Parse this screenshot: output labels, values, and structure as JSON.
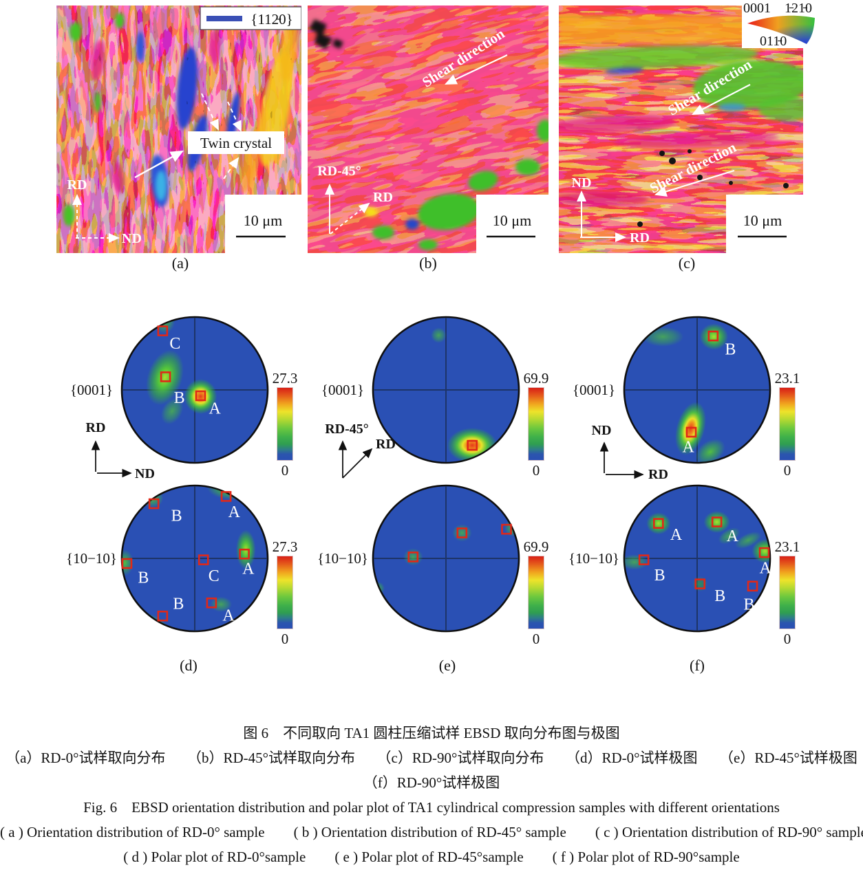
{
  "figure_tags": {
    "a": "(a)",
    "b": "(b)",
    "c": "(c)",
    "d": "(d)",
    "e": "(e)",
    "f": "(f)"
  },
  "panels": {
    "a": {
      "legend_text": "{112̵0}",
      "twin_label": "Twin crystal",
      "rd": "RD",
      "nd": "ND",
      "scale": "10 μm"
    },
    "b": {
      "shear": "Shear direction",
      "rd45": "RD-45°",
      "rd": "RD",
      "scale": "10 μm"
    },
    "c": {
      "shear1": "Shear direction",
      "shear2": "Shear direction",
      "key_0001": "0001",
      "key_1210": "1̵21̵0",
      "key_0110": "011̵0",
      "nd": "ND",
      "rd": "RD",
      "scale": "10 μm"
    }
  },
  "pf_axes": [
    {
      "v": "RD",
      "h": "ND"
    },
    {
      "v": "RD-45°",
      "diag": "RD"
    },
    {
      "v": "ND",
      "h": "RD"
    }
  ],
  "colors": {
    "pf_background": "#2a50b4",
    "pf_crosshair": "#1d3468",
    "marker": "#e02818",
    "colorbar_top": "#d81f16",
    "colorbar_bottom": "#2a4fb3"
  },
  "captions": {
    "zh_title": "图 6　不同取向 TA1 圆柱压缩试样 EBSD 取向分布图与极图",
    "zh_line2": "（a）RD-0°试样取向分布　　（b）RD-45°试样取向分布　　（c）RD-90°试样取向分布　　（d）RD-0°试样极图　　（e）RD-45°试样极图",
    "zh_line3": "（f）RD-90°试样极图",
    "en_title": "Fig. 6　EBSD orientation distribution and polar plot of TA1 cylindrical compression samples with different orientations",
    "en_line2": "( a )  Orientation distribution of RD-0° sample　　( b )  Orientation distribution of RD-45° sample　　( c )  Orientation distribution of RD-90° sample",
    "en_line3": "( d )  Polar plot of RD-0°sample　　( e )  Polar plot of RD-45°sample　　( f )  Polar plot of RD-90°sample"
  },
  "chart_data": {
    "type": "scatter",
    "description": "Six EBSD pole figures (stereographic projections). Coordinates are relative to pole-figure radius: x right, y up, unit circle. Intensity color scale from 0 (blue) to max (red).",
    "pole_figures": [
      {
        "id": "pf-0001-rd0",
        "family": "{0001}",
        "sample": "RD-0°",
        "scale_max": "27.3",
        "scale_min": "0",
        "points": [
          {
            "label": "C",
            "marker": [
              -0.44,
              0.81
            ],
            "label_off": [
              10,
              26
            ],
            "blob": {
              "c": [
                -0.42,
                0.95
              ],
              "rx": 0.1,
              "ry": 0.12,
              "rot": 0,
              "i": "med"
            }
          },
          {
            "label": "B",
            "marker": [
              -0.4,
              0.18
            ],
            "label_off": [
              12,
              38
            ],
            "blob": {
              "c": [
                -0.41,
                0.17
              ],
              "rx": 0.16,
              "ry": 0.26,
              "rot": 18,
              "i": "bright"
            }
          },
          {
            "label": "",
            "marker": null,
            "blob": {
              "c": [
                -0.31,
                -0.29
              ],
              "rx": 0.09,
              "ry": 0.13,
              "rot": 30,
              "i": "faint"
            }
          },
          {
            "label": "A",
            "marker": [
              0.08,
              -0.08
            ],
            "label_off": [
              12,
              26
            ],
            "blob": {
              "c": [
                0.08,
                -0.09
              ],
              "rx": 0.15,
              "ry": 0.16,
              "rot": 0,
              "i": "hot"
            }
          }
        ]
      },
      {
        "id": "pf-0001-rd45",
        "family": "{0001}",
        "sample": "RD-45°",
        "scale_max": "69.9",
        "scale_min": "0",
        "points": [
          {
            "label": "",
            "marker": null,
            "blob": {
              "c": [
                -0.1,
                0.75
              ],
              "rx": 0.07,
              "ry": 0.07,
              "rot": 0,
              "i": "faint"
            }
          },
          {
            "label": "",
            "marker": [
              0.36,
              -0.76
            ],
            "blob": {
              "c": [
                0.36,
                -0.76
              ],
              "rx": 0.23,
              "ry": 0.16,
              "rot": 0,
              "i": "hot"
            }
          }
        ]
      },
      {
        "id": "pf-0001-rd90",
        "family": "{0001}",
        "sample": "RD-90°",
        "scale_max": "23.1",
        "scale_min": "0",
        "points": [
          {
            "label": "",
            "marker": null,
            "blob": {
              "c": [
                -0.47,
                0.73
              ],
              "rx": 0.19,
              "ry": 0.09,
              "rot": 0,
              "i": "faint"
            }
          },
          {
            "label": "B",
            "marker": [
              0.22,
              0.74
            ],
            "label_off": [
              17,
              27
            ],
            "blob": {
              "c": [
                0.23,
                0.73
              ],
              "rx": 0.13,
              "ry": 0.12,
              "rot": 0,
              "i": "bright"
            }
          },
          {
            "label": "A",
            "marker": [
              -0.08,
              -0.58
            ],
            "label_off": [
              -13,
              29
            ],
            "blob": {
              "c": [
                -0.09,
                -0.53
              ],
              "rx": 0.13,
              "ry": 0.25,
              "rot": 15,
              "i": "hot"
            }
          },
          {
            "label": "",
            "marker": null,
            "blob": {
              "c": [
                0.18,
                -0.85
              ],
              "rx": 0.15,
              "ry": 0.1,
              "rot": -35,
              "i": "med"
            }
          }
        ]
      },
      {
        "id": "pf-1010-rd0",
        "family": "{10−10}",
        "sample": "RD-0°",
        "scale_max": "27.3",
        "scale_min": "0",
        "points": [
          {
            "label": "B",
            "marker": [
              -0.56,
              0.75
            ],
            "label_off": [
              25,
              25
            ],
            "blob": {
              "c": [
                -0.58,
                0.83
              ],
              "rx": 0.1,
              "ry": 0.09,
              "rot": 0,
              "i": "med"
            }
          },
          {
            "label": "A",
            "marker": [
              0.43,
              0.85
            ],
            "label_off": [
              3,
              30
            ],
            "blob": {
              "c": [
                0.45,
                0.93
              ],
              "rx": 0.19,
              "ry": 0.08,
              "rot": 8,
              "i": "med"
            }
          },
          {
            "label": "A",
            "marker": [
              0.68,
              0.06
            ],
            "label_off": [
              -3,
              29
            ],
            "blob": {
              "c": [
                0.7,
                0.12
              ],
              "rx": 0.09,
              "ry": 0.18,
              "rot": 0,
              "i": "bright"
            }
          },
          {
            "label": "B",
            "marker": [
              -0.93,
              -0.07
            ],
            "label_off": [
              16,
              28
            ],
            "blob": {
              "c": [
                -0.96,
                -0.06
              ],
              "rx": 0.08,
              "ry": 0.12,
              "rot": 0,
              "i": "med"
            }
          },
          {
            "label": "C",
            "marker": [
              0.12,
              -0.02
            ],
            "label_off": [
              7,
              31
            ],
            "blob": null
          },
          {
            "label": "A",
            "marker": [
              0.23,
              -0.61
            ],
            "label_off": [
              16,
              26
            ],
            "blob": {
              "c": [
                0.36,
                -0.63
              ],
              "rx": 0.1,
              "ry": 0.07,
              "rot": 0,
              "i": "faint"
            }
          },
          {
            "label": "B",
            "marker": [
              -0.44,
              -0.79
            ],
            "label_off": [
              15,
              -10
            ],
            "blob": {
              "c": [
                -0.54,
                -0.92
              ],
              "rx": 0.15,
              "ry": 0.08,
              "rot": 35,
              "i": "med"
            }
          }
        ]
      },
      {
        "id": "pf-1010-rd45",
        "family": "{10−10}",
        "sample": "RD-45°",
        "scale_max": "69.9",
        "scale_min": "0",
        "points": [
          {
            "label": "",
            "marker": [
              -0.45,
              0.02
            ],
            "blob": {
              "c": [
                -0.45,
                0.02
              ],
              "rx": 0.09,
              "ry": 0.08,
              "rot": 0,
              "i": "faint"
            }
          },
          {
            "label": "",
            "marker": [
              0.22,
              0.35
            ],
            "blob": {
              "c": [
                0.22,
                0.35
              ],
              "rx": 0.09,
              "ry": 0.08,
              "rot": 0,
              "i": "faint"
            }
          },
          {
            "label": "",
            "marker": [
              0.83,
              0.4
            ],
            "blob": {
              "c": [
                0.92,
                0.42
              ],
              "rx": 0.08,
              "ry": 0.08,
              "rot": 0,
              "i": "med"
            }
          },
          {
            "label": "",
            "marker": null,
            "blob": {
              "c": [
                -0.93,
                -0.41
              ],
              "rx": 0.06,
              "ry": 0.06,
              "rot": 0,
              "i": "faint"
            }
          }
        ]
      },
      {
        "id": "pf-1010-rd90",
        "family": "{10−10}",
        "sample": "RD-90°",
        "scale_max": "23.1",
        "scale_min": "0",
        "points": [
          {
            "label": "A",
            "marker": [
              -0.53,
              0.48
            ],
            "label_off": [
              17,
              24
            ],
            "blob": {
              "c": [
                -0.53,
                0.48
              ],
              "rx": 0.11,
              "ry": 0.1,
              "rot": 0,
              "i": "bright"
            }
          },
          {
            "label": "A",
            "marker": [
              0.27,
              0.5
            ],
            "label_off": [
              14,
              28
            ],
            "blob": {
              "c": [
                0.27,
                0.5
              ],
              "rx": 0.12,
              "ry": 0.1,
              "rot": 0,
              "i": "bright"
            }
          },
          {
            "label": "",
            "marker": null,
            "blob": {
              "c": [
                0.44,
                0.31
              ],
              "rx": 0.11,
              "ry": 0.06,
              "rot": -30,
              "i": "faint"
            }
          },
          {
            "label": "A",
            "marker": [
              0.92,
              0.08
            ],
            "label_off": [
              -7,
              30
            ],
            "blob": {
              "c": [
                0.93,
                0.1
              ],
              "rx": 0.12,
              "ry": 0.11,
              "rot": 0,
              "i": "bright"
            }
          },
          {
            "label": "",
            "marker": null,
            "blob": {
              "c": [
                0.7,
                0.25
              ],
              "rx": 0.13,
              "ry": 0.06,
              "rot": -25,
              "i": "faint"
            }
          },
          {
            "label": "B",
            "marker": [
              -0.73,
              -0.02
            ],
            "label_off": [
              15,
              30
            ],
            "blob": {
              "c": [
                -0.86,
                -0.05
              ],
              "rx": 0.13,
              "ry": 0.07,
              "rot": 0,
              "i": "faint"
            }
          },
          {
            "label": "B",
            "marker": [
              0.04,
              -0.35
            ],
            "label_off": [
              21,
              25
            ],
            "blob": {
              "c": [
                0.04,
                -0.35
              ],
              "rx": 0.07,
              "ry": 0.07,
              "rot": 0,
              "i": "dim"
            }
          },
          {
            "label": "B",
            "marker": [
              0.76,
              -0.38
            ],
            "label_off": [
              -13,
              34
            ],
            "blob": null
          }
        ]
      }
    ]
  }
}
